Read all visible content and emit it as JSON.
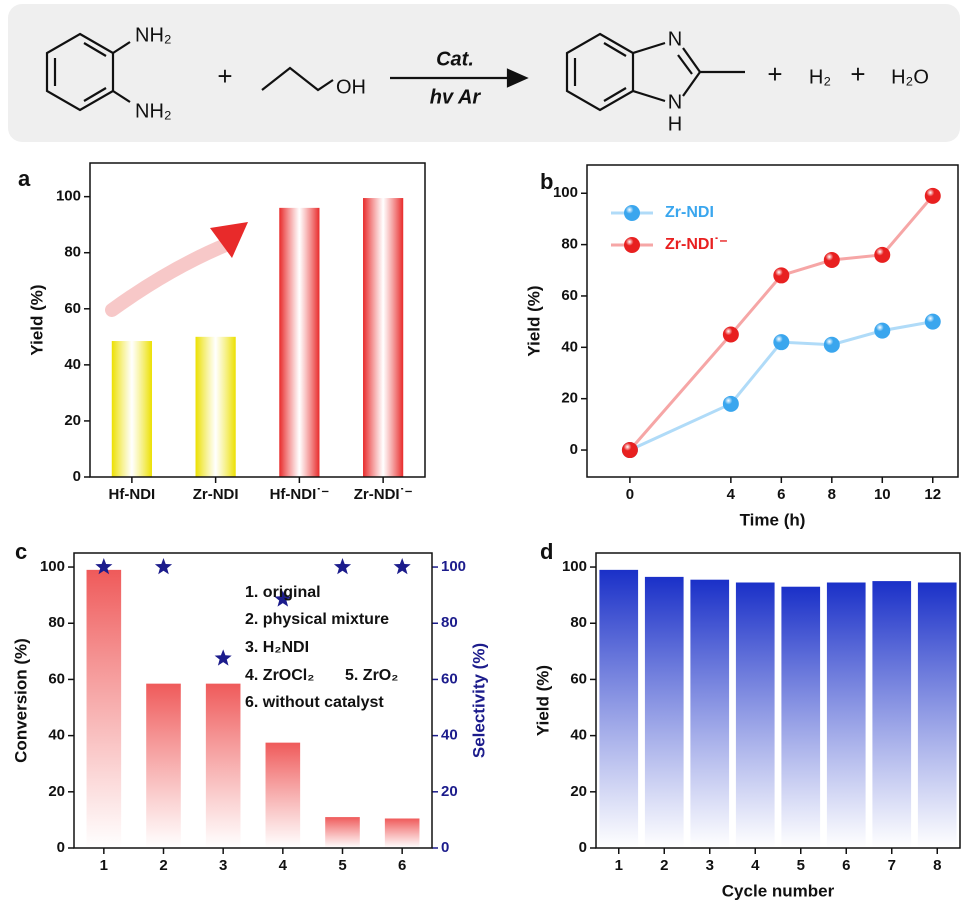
{
  "scheme": {
    "reactant_1": [
      "NH₂",
      "NH₂"
    ],
    "plus_1": "+",
    "reactant_2": "OH",
    "condition_top": "Cat.",
    "condition_bottom": "hv   Ar",
    "product_atoms": [
      "N",
      "N",
      "H"
    ],
    "byproducts": [
      "+",
      "H₂",
      "+",
      "H₂O"
    ]
  },
  "chart_data": [
    {
      "type": "bar",
      "panel": "a",
      "ylabel": "Yield (%)",
      "categories": [
        "Hf-NDI",
        "Zr-NDI",
        "Hf-NDI˙⁻",
        "Zr-NDI˙⁻"
      ],
      "values": [
        48.5,
        50,
        96,
        99.5
      ],
      "colors": [
        "#ece000",
        "#ece000",
        "#e82a2a",
        "#e82a2a"
      ],
      "gradient": "horizontal",
      "ylim": [
        0,
        112
      ],
      "yticks": [
        0,
        20,
        40,
        60,
        80,
        100
      ]
    },
    {
      "type": "line",
      "panel": "b",
      "xlabel": "Time (h)",
      "ylabel": "Yield (%)",
      "x": [
        0,
        4,
        6,
        8,
        10,
        12
      ],
      "series": [
        {
          "name": "Zr-NDI",
          "color": "#3aa6ee",
          "values": [
            0,
            18,
            42,
            41,
            46.5,
            50
          ]
        },
        {
          "name": "Zr-NDI˙⁻",
          "color": "#e82020",
          "values": [
            0,
            45,
            68,
            74,
            76,
            99
          ]
        }
      ],
      "xlim": [
        -1.7,
        13
      ],
      "xticks": [
        0,
        4,
        6,
        8,
        10,
        12
      ],
      "ylim": [
        -10.5,
        111
      ],
      "yticks": [
        0,
        20,
        40,
        60,
        80,
        100
      ],
      "legend": "upper left"
    },
    {
      "type": "bar",
      "panel": "c",
      "ylabel": "Conversion (%)",
      "y2label": "Selectivity (%)",
      "categories": [
        "1",
        "2",
        "3",
        "4",
        "5",
        "6"
      ],
      "values": [
        99,
        58.5,
        58.5,
        37.5,
        11,
        10.5
      ],
      "colors": [
        "#ef5a5a",
        "#ef5a5a",
        "#ef5a5a",
        "#ef5a5a",
        "#ef5a5a",
        "#ef5a5a"
      ],
      "gradient": "vertical",
      "points": {
        "axis": "y2",
        "marker": "star",
        "color": "#1c1c8c",
        "values": [
          100,
          100,
          67.5,
          88.5,
          100,
          100
        ]
      },
      "ylim": [
        0,
        105
      ],
      "yticks": [
        0,
        20,
        40,
        60,
        80,
        100
      ],
      "y2lim": [
        0,
        105
      ],
      "y2ticks": [
        0,
        20,
        40,
        60,
        80,
        100
      ],
      "annotations": [
        "1.  original",
        "2.  physical mixture",
        "3.  H₂NDI",
        "4.  ZrOCl₂",
        "5.  ZrO₂",
        "6.  without catalyst"
      ]
    },
    {
      "type": "bar",
      "panel": "d",
      "xlabel": "Cycle number",
      "ylabel": "Yield (%)",
      "categories": [
        "1",
        "2",
        "3",
        "4",
        "5",
        "6",
        "7",
        "8"
      ],
      "values": [
        99,
        96.5,
        95.5,
        94.5,
        93,
        94.5,
        95,
        94.5
      ],
      "colors": [
        "#1a30c8",
        "#1a30c8",
        "#1a30c8",
        "#1a30c8",
        "#1a30c8",
        "#1a30c8",
        "#1a30c8",
        "#1a30c8"
      ],
      "gradient": "vertical",
      "ylim": [
        0,
        105
      ],
      "yticks": [
        0,
        20,
        40,
        60,
        80,
        100
      ]
    }
  ]
}
